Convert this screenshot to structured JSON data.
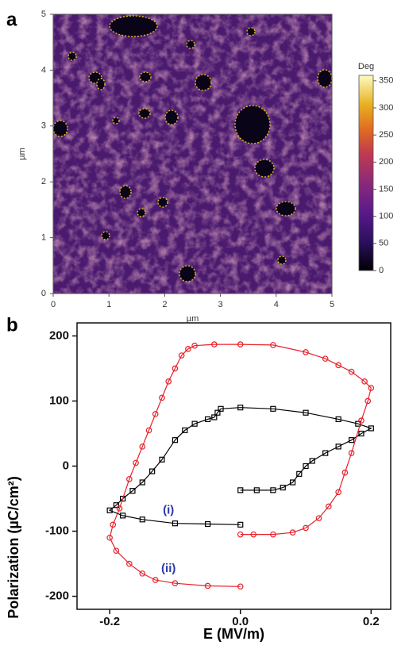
{
  "chart_data": [
    {
      "type": "image",
      "panel": "a",
      "xlabel": "µm",
      "ylabel": "µm",
      "xlim": [
        0,
        5
      ],
      "ylim": [
        0,
        5
      ],
      "xticks": [
        0,
        1,
        2,
        3,
        4,
        5
      ],
      "yticks": [
        0,
        1,
        2,
        3,
        4,
        5
      ],
      "colorbar": {
        "title": "Deg",
        "lim": [
          0,
          360
        ],
        "ticks": [
          0,
          50,
          100,
          150,
          200,
          250,
          300,
          350
        ]
      }
    },
    {
      "type": "scatter",
      "panel": "b",
      "xlabel": "E (MV/m)",
      "ylabel": "Polarization (µC/cm²)",
      "xlim": [
        -0.25,
        0.23
      ],
      "ylim": [
        -220,
        220
      ],
      "xticks": [
        -0.2,
        {
          "value": 0,
          "label": "0.0"
        },
        0.2
      ],
      "yticks": [
        -200,
        -100,
        0,
        100,
        200
      ],
      "series": [
        {
          "color": "#000000",
          "marker": "square",
          "x": [
            0,
            -0.05,
            -0.1,
            -0.15,
            -0.18,
            -0.2,
            -0.19,
            -0.18,
            -0.165,
            -0.15,
            -0.135,
            -0.12,
            -0.1,
            -0.085,
            -0.07,
            -0.05,
            -0.04,
            -0.035,
            -0.03,
            0,
            0.05,
            0.1,
            0.15,
            0.18,
            0.2,
            0.185,
            0.17,
            0.15,
            0.13,
            0.11,
            0.1,
            0.09,
            0.08,
            0.065,
            0.05,
            0.025,
            0
          ],
          "y": [
            -90,
            -89,
            -88,
            -82,
            -76,
            -68,
            -60,
            -50,
            -38,
            -25,
            -8,
            10,
            40,
            55,
            65,
            72,
            75,
            82,
            88,
            90,
            88,
            82,
            72,
            65,
            58,
            50,
            40,
            30,
            20,
            8,
            0,
            -12,
            -25,
            -33,
            -37,
            -37,
            -37
          ]
        },
        {
          "color": "#e8202a",
          "marker": "circle",
          "x": [
            0,
            -0.05,
            -0.1,
            -0.13,
            -0.15,
            -0.17,
            -0.19,
            -0.2,
            -0.195,
            -0.185,
            -0.17,
            -0.16,
            -0.15,
            -0.14,
            -0.13,
            -0.12,
            -0.11,
            -0.1,
            -0.09,
            -0.08,
            -0.07,
            -0.04,
            0,
            0.05,
            0.1,
            0.13,
            0.15,
            0.17,
            0.19,
            0.2,
            0.195,
            0.185,
            0.17,
            0.16,
            0.15,
            0.135,
            0.12,
            0.1,
            0.08,
            0.05,
            0.02,
            0
          ],
          "y": [
            -185,
            -184,
            -180,
            -175,
            -165,
            -150,
            -130,
            -110,
            -90,
            -65,
            -20,
            5,
            30,
            55,
            80,
            105,
            130,
            150,
            170,
            180,
            185,
            187,
            187,
            186,
            175,
            165,
            155,
            145,
            130,
            120,
            100,
            70,
            20,
            -10,
            -40,
            -62,
            -80,
            -95,
            -102,
            -105,
            -105,
            -105
          ]
        }
      ],
      "annotations": [
        {
          "text": "(i)",
          "x": -0.11,
          "y": -68,
          "color": "#2a3aa8"
        },
        {
          "text": "(ii)",
          "x": -0.11,
          "y": -158,
          "color": "#2a3aa8"
        }
      ]
    }
  ]
}
